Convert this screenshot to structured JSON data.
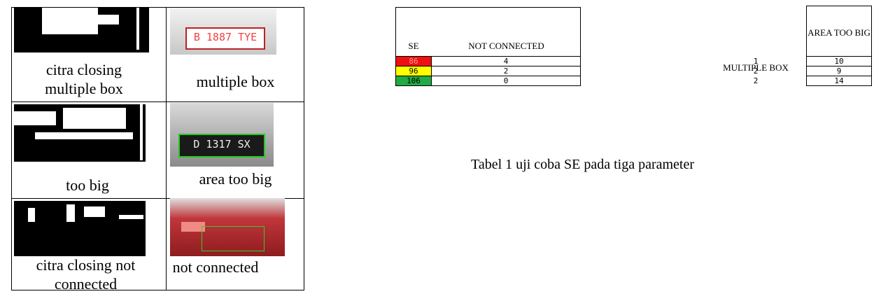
{
  "left_table": {
    "rows": [
      {
        "binary_caption": "citra closing multiple box",
        "photo_caption": "multiple box",
        "plate": "B 1887 TYE"
      },
      {
        "binary_caption": "too big",
        "photo_caption": "area too big",
        "plate": "D 1317 SX"
      },
      {
        "binary_caption": "citra closing not connected",
        "photo_caption": "not connected"
      }
    ]
  },
  "se_table": {
    "headers": [
      "SE",
      "NOT CONNECTED"
    ],
    "rows": [
      [
        86,
        4
      ],
      [
        96,
        2
      ],
      [
        106,
        0
      ]
    ]
  },
  "multiple_box": {
    "header": "MULTIPLE BOX",
    "values": [
      1,
      2,
      2
    ]
  },
  "area_table": {
    "header": "AREA TOO BIG",
    "values": [
      10,
      9,
      14
    ]
  },
  "caption": "Tabel 1 uji coba SE pada tiga parameter"
}
